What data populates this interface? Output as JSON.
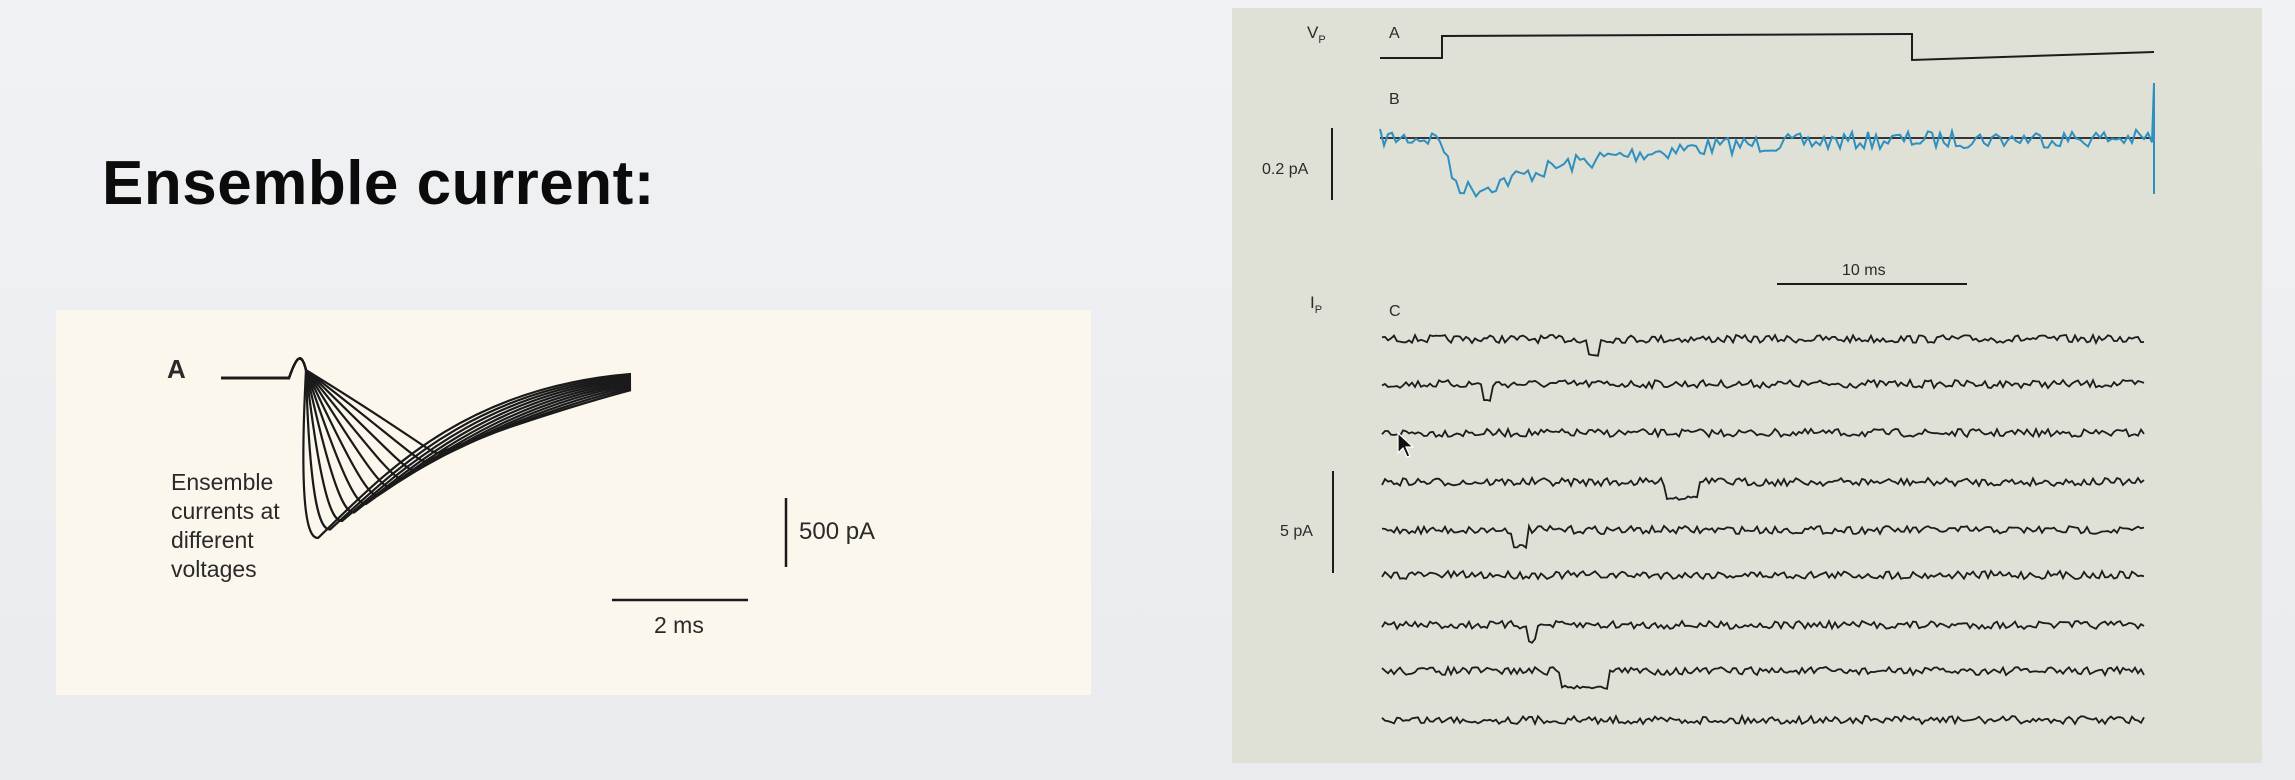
{
  "slide": {
    "title": "Ensemble current:"
  },
  "left_figure": {
    "panel_label": "A",
    "caption_lines": [
      "Ensemble",
      "currents at",
      "different",
      "voltages"
    ],
    "scale_current": "500 pA",
    "scale_time": "2 ms",
    "trace_color": "#1a1a1a"
  },
  "right_figure": {
    "label_vp": "V",
    "label_vp_sub": "P",
    "label_ip": "I",
    "label_ip_sub": "P",
    "panel_a_label": "A",
    "panel_b_label": "B",
    "panel_c_label": "C",
    "scale_b_current": "0.2 pA",
    "scale_time": "10 ms",
    "scale_c_current": "5 pA",
    "average_trace_color": "#2f8fbf",
    "trace_color": "#1c1c1c"
  },
  "cursor": {
    "icon": "arrow-cursor-icon"
  }
}
